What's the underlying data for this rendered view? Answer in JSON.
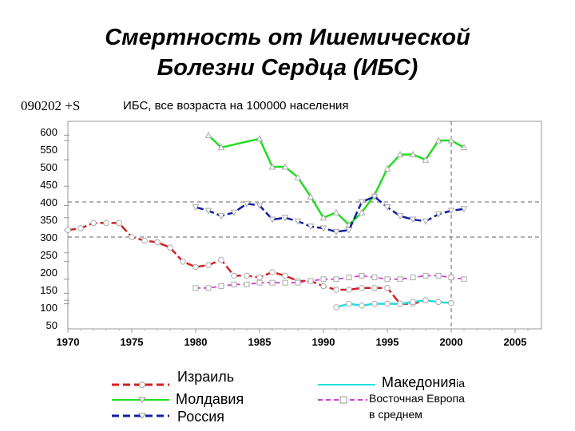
{
  "title_line1": "Смертность от Ишемической",
  "title_line2": "Болезни Сердца (ИБС)",
  "code_label": "090202 +S",
  "chart_data": {
    "type": "line",
    "title": "ИБС, все возраста на 100000 населения",
    "xlabel": "",
    "ylabel": "",
    "xlim": [
      1970,
      2007
    ],
    "ylim": [
      50,
      600
    ],
    "xticks": [
      1970,
      1975,
      1980,
      1985,
      1990,
      1995,
      2000,
      2005
    ],
    "yticks": [
      50,
      100,
      150,
      200,
      250,
      300,
      350,
      400,
      450,
      500,
      550,
      600
    ],
    "grid": "dashed horizontal at 400 and 300, vertical at 2000",
    "legend_position": "bottom",
    "series": [
      {
        "name": "Израиль",
        "color": "#d42020",
        "marker": "circle",
        "points": [
          [
            1970,
            320
          ],
          [
            1971,
            325
          ],
          [
            1972,
            340
          ],
          [
            1973,
            340
          ],
          [
            1974,
            340
          ],
          [
            1975,
            300
          ],
          [
            1976,
            290
          ],
          [
            1977,
            285
          ],
          [
            1978,
            270
          ],
          [
            1979,
            230
          ],
          [
            1980,
            215
          ],
          [
            1981,
            220
          ],
          [
            1982,
            235
          ],
          [
            1983,
            190
          ],
          [
            1984,
            190
          ],
          [
            1985,
            185
          ],
          [
            1986,
            200
          ],
          [
            1987,
            190
          ],
          [
            1988,
            175
          ],
          [
            1989,
            175
          ],
          [
            1990,
            160
          ],
          [
            1991,
            150
          ],
          [
            1992,
            150
          ],
          [
            1993,
            155
          ],
          [
            1994,
            155
          ],
          [
            1995,
            155
          ],
          [
            1996,
            110
          ],
          [
            1997,
            110
          ],
          [
            1998,
            120
          ]
        ]
      },
      {
        "name": "Молдавия",
        "color": "#22dd22",
        "marker": "triangle",
        "points": [
          [
            1981,
            590
          ],
          [
            1982,
            555
          ],
          [
            1985,
            580
          ],
          [
            1986,
            500
          ],
          [
            1987,
            500
          ],
          [
            1988,
            470
          ],
          [
            1989,
            415
          ],
          [
            1990,
            355
          ],
          [
            1991,
            370
          ],
          [
            1992,
            335
          ],
          [
            1993,
            370
          ],
          [
            1994,
            420
          ],
          [
            1995,
            495
          ],
          [
            1996,
            535
          ],
          [
            1997,
            535
          ],
          [
            1998,
            520
          ],
          [
            1999,
            575
          ],
          [
            2000,
            575
          ],
          [
            2001,
            555
          ]
        ]
      },
      {
        "name": "Россия",
        "color": "#1020a0",
        "marker": "triangle-down",
        "points": [
          [
            1980,
            385
          ],
          [
            1981,
            375
          ],
          [
            1982,
            360
          ],
          [
            1983,
            370
          ],
          [
            1984,
            395
          ],
          [
            1985,
            390
          ],
          [
            1986,
            350
          ],
          [
            1987,
            355
          ],
          [
            1988,
            345
          ],
          [
            1989,
            330
          ],
          [
            1990,
            325
          ],
          [
            1991,
            315
          ],
          [
            1992,
            320
          ],
          [
            1993,
            400
          ],
          [
            1994,
            415
          ],
          [
            1995,
            385
          ],
          [
            1996,
            360
          ],
          [
            1997,
            350
          ],
          [
            1998,
            345
          ],
          [
            1999,
            365
          ],
          [
            2000,
            375
          ],
          [
            2001,
            380
          ]
        ]
      },
      {
        "name": "Македония",
        "color": "#22dddd",
        "marker": "circle",
        "points": [
          [
            1991,
            100
          ],
          [
            1992,
            110
          ],
          [
            1993,
            105
          ],
          [
            1994,
            110
          ],
          [
            1995,
            110
          ],
          [
            1996,
            110
          ],
          [
            1997,
            115
          ],
          [
            1998,
            120
          ],
          [
            1999,
            115
          ],
          [
            2000,
            112
          ]
        ]
      },
      {
        "name": "Восточная Европа в среднем",
        "color": "#cc44cc",
        "marker": "square",
        "points": [
          [
            1980,
            155
          ],
          [
            1981,
            155
          ],
          [
            1982,
            160
          ],
          [
            1983,
            165
          ],
          [
            1984,
            165
          ],
          [
            1985,
            170
          ],
          [
            1986,
            170
          ],
          [
            1987,
            170
          ],
          [
            1988,
            170
          ],
          [
            1989,
            175
          ],
          [
            1990,
            180
          ],
          [
            1991,
            180
          ],
          [
            1992,
            185
          ],
          [
            1993,
            190
          ],
          [
            1994,
            185
          ],
          [
            1995,
            180
          ],
          [
            1996,
            180
          ],
          [
            1997,
            185
          ],
          [
            1998,
            190
          ],
          [
            1999,
            190
          ],
          [
            2000,
            185
          ],
          [
            2001,
            180
          ]
        ]
      }
    ]
  },
  "legend": {
    "israel": "Израиль",
    "moldova": "Молдавия",
    "russia": "Россия",
    "macedonia": "Македония",
    "macedonia_tail": "ia",
    "east_europe_line1": "Восточная Европа",
    "east_europe_line2": "в среднем"
  }
}
